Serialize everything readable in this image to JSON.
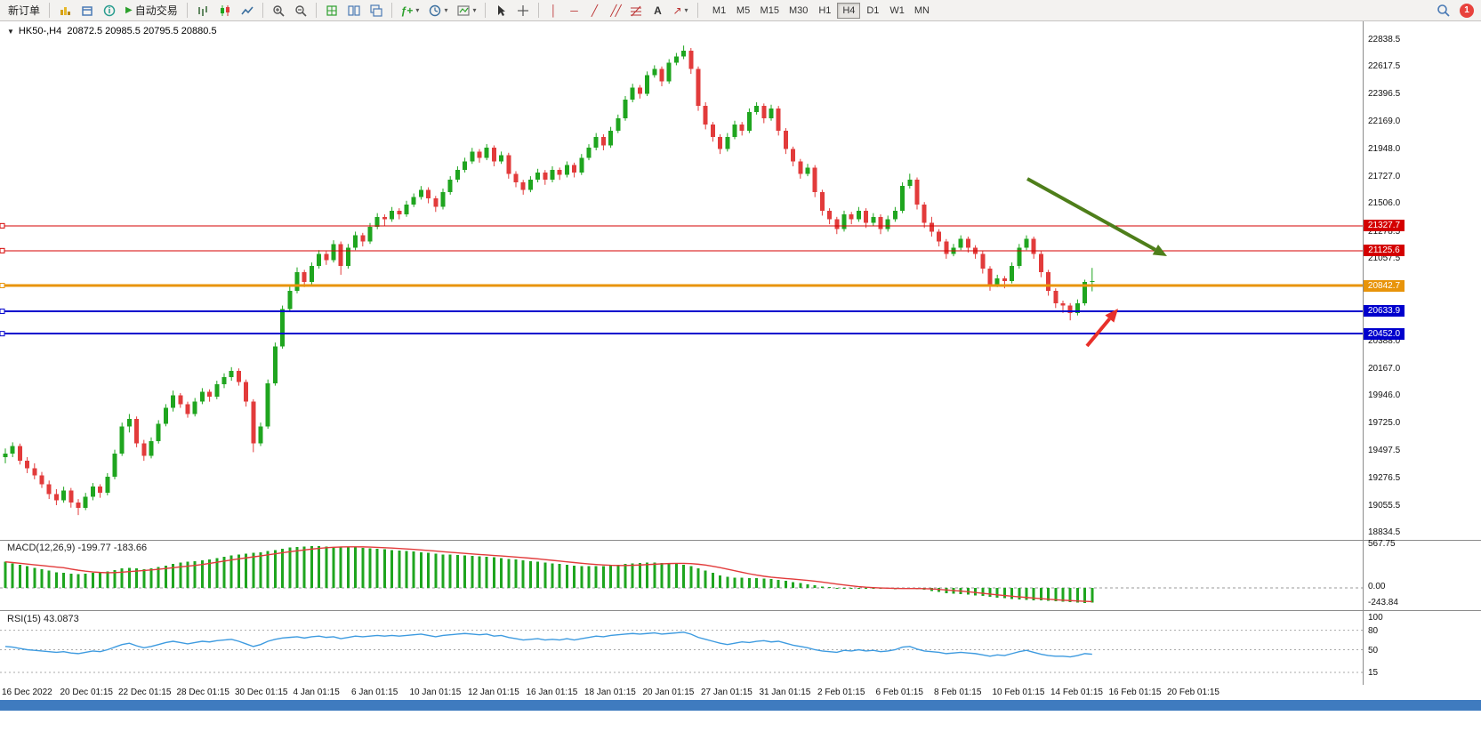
{
  "toolbar": {
    "new_order_label": "新订单",
    "auto_trade_label": "自动交易",
    "timeframes": [
      "M1",
      "M5",
      "M15",
      "M30",
      "H1",
      "H4",
      "D1",
      "W1",
      "MN"
    ],
    "active_timeframe": "H4",
    "notification_count": "1"
  },
  "icons": {
    "expand_triangle": "▼",
    "play": "▶",
    "dropdown_caret": "▾",
    "vline": "│",
    "hline": "─",
    "trendline": "╱",
    "channel": "╱╱",
    "text_tool": "A",
    "arrows_tool": "↗",
    "indicator_fx": "ƒ+"
  },
  "colors": {
    "up": "#1fa51f",
    "down": "#e23b3b",
    "macd_hist": "#1fa51f",
    "macd_signal": "#e23b3b",
    "rsi_line": "#3e9be0",
    "line_red": "#d40000",
    "line_orange": "#e8940a",
    "line_blue": "#0000cd"
  },
  "chart": {
    "title": "HK50-,H4",
    "ohlc_text": "20872.5 20985.5 20795.5 20880.5"
  },
  "chart_data": {
    "type": "candlestick",
    "symbol": "HK50-",
    "timeframe": "H4",
    "last_ohlc": {
      "open": 20872.5,
      "high": 20985.5,
      "low": 20795.5,
      "close": 20880.5
    },
    "price_range_visible": [
      18800,
      22900
    ],
    "price_axis": [
      22838.5,
      22617.5,
      22396.5,
      22169.0,
      21948.0,
      21727.0,
      21506.0,
      21278.5,
      21057.5,
      20388.0,
      20167.0,
      19946.0,
      19725.0,
      19497.5,
      19276.5,
      19055.5,
      18834.5
    ],
    "horizontal_lines": [
      {
        "price": 21327.7,
        "color": "#d40000",
        "width": 1
      },
      {
        "price": 21125.6,
        "color": "#d40000",
        "width": 1
      },
      {
        "price": 20842.7,
        "color": "#e8940a",
        "width": 3
      },
      {
        "price": 20633.9,
        "color": "#0000cd",
        "width": 2
      },
      {
        "price": 20452.0,
        "color": "#0000cd",
        "width": 2
      }
    ],
    "annotations": [
      {
        "name": "downtrend-arrow",
        "color": "#4e7e1a",
        "width": 4,
        "from": [
          1155,
          201
        ],
        "to": [
          1312,
          288
        ]
      },
      {
        "name": "bounce-arrow",
        "color": "#e8302a",
        "width": 4,
        "from": [
          1222,
          389
        ],
        "to": [
          1257,
          347
        ]
      }
    ],
    "candles": [
      [
        19450,
        19520,
        19400,
        19480
      ],
      [
        19480,
        19570,
        19450,
        19540
      ],
      [
        19540,
        19560,
        19390,
        19420
      ],
      [
        19420,
        19450,
        19320,
        19360
      ],
      [
        19360,
        19400,
        19270,
        19300
      ],
      [
        19300,
        19330,
        19200,
        19230
      ],
      [
        19230,
        19260,
        19110,
        19150
      ],
      [
        19150,
        19190,
        19060,
        19100
      ],
      [
        19100,
        19210,
        19080,
        19180
      ],
      [
        19180,
        19200,
        19040,
        19080
      ],
      [
        19080,
        19110,
        18980,
        19040
      ],
      [
        19040,
        19160,
        19020,
        19130
      ],
      [
        19130,
        19240,
        19100,
        19210
      ],
      [
        19210,
        19230,
        19120,
        19160
      ],
      [
        19160,
        19320,
        19140,
        19290
      ],
      [
        19290,
        19510,
        19270,
        19480
      ],
      [
        19480,
        19730,
        19460,
        19700
      ],
      [
        19700,
        19800,
        19650,
        19760
      ],
      [
        19760,
        19780,
        19530,
        19560
      ],
      [
        19560,
        19590,
        19420,
        19460
      ],
      [
        19460,
        19610,
        19440,
        19580
      ],
      [
        19580,
        19750,
        19560,
        19720
      ],
      [
        19720,
        19880,
        19700,
        19850
      ],
      [
        19850,
        19990,
        19820,
        19950
      ],
      [
        19950,
        19970,
        19850,
        19880
      ],
      [
        19880,
        19900,
        19770,
        19800
      ],
      [
        19800,
        19930,
        19780,
        19900
      ],
      [
        19900,
        20010,
        19880,
        19980
      ],
      [
        19980,
        20000,
        19900,
        19940
      ],
      [
        19940,
        20070,
        19920,
        20040
      ],
      [
        20040,
        20130,
        20010,
        20100
      ],
      [
        20100,
        20180,
        20070,
        20150
      ],
      [
        20150,
        20170,
        20030,
        20060
      ],
      [
        20060,
        20080,
        19860,
        19900
      ],
      [
        19900,
        19920,
        19490,
        19560
      ],
      [
        19560,
        19730,
        19540,
        19700
      ],
      [
        19700,
        20080,
        19680,
        20050
      ],
      [
        20050,
        20380,
        20030,
        20350
      ],
      [
        20350,
        20680,
        20330,
        20650
      ],
      [
        20650,
        20840,
        20630,
        20800
      ],
      [
        20800,
        20990,
        20780,
        20950
      ],
      [
        20950,
        20970,
        20830,
        20870
      ],
      [
        20870,
        21030,
        20850,
        21000
      ],
      [
        21000,
        21130,
        20980,
        21100
      ],
      [
        21100,
        21120,
        21010,
        21050
      ],
      [
        21050,
        21210,
        21030,
        21180
      ],
      [
        21180,
        21200,
        20930,
        21000
      ],
      [
        21000,
        21180,
        20980,
        21150
      ],
      [
        21150,
        21280,
        21130,
        21250
      ],
      [
        21250,
        21270,
        21160,
        21200
      ],
      [
        21200,
        21350,
        21180,
        21320
      ],
      [
        21320,
        21430,
        21300,
        21400
      ],
      [
        21400,
        21420,
        21330,
        21380
      ],
      [
        21380,
        21480,
        21360,
        21450
      ],
      [
        21450,
        21470,
        21380,
        21420
      ],
      [
        21420,
        21530,
        21400,
        21500
      ],
      [
        21500,
        21590,
        21480,
        21560
      ],
      [
        21560,
        21650,
        21540,
        21620
      ],
      [
        21620,
        21640,
        21510,
        21550
      ],
      [
        21550,
        21570,
        21440,
        21480
      ],
      [
        21480,
        21630,
        21460,
        21600
      ],
      [
        21600,
        21730,
        21580,
        21700
      ],
      [
        21700,
        21810,
        21680,
        21780
      ],
      [
        21780,
        21880,
        21760,
        21850
      ],
      [
        21850,
        21960,
        21830,
        21930
      ],
      [
        21930,
        21950,
        21840,
        21880
      ],
      [
        21880,
        21990,
        21860,
        21960
      ],
      [
        21960,
        21980,
        21810,
        21850
      ],
      [
        21850,
        21930,
        21830,
        21900
      ],
      [
        21900,
        21920,
        21710,
        21750
      ],
      [
        21750,
        21770,
        21640,
        21680
      ],
      [
        21680,
        21700,
        21580,
        21620
      ],
      [
        21620,
        21730,
        21600,
        21700
      ],
      [
        21700,
        21790,
        21680,
        21760
      ],
      [
        21760,
        21780,
        21660,
        21700
      ],
      [
        21700,
        21810,
        21680,
        21780
      ],
      [
        21780,
        21800,
        21700,
        21740
      ],
      [
        21740,
        21850,
        21720,
        21820
      ],
      [
        21820,
        21840,
        21720,
        21760
      ],
      [
        21760,
        21910,
        21740,
        21880
      ],
      [
        21880,
        21990,
        21860,
        21960
      ],
      [
        21960,
        22080,
        21940,
        22050
      ],
      [
        22050,
        22070,
        21940,
        21980
      ],
      [
        21980,
        22130,
        21960,
        22100
      ],
      [
        22100,
        22230,
        22080,
        22200
      ],
      [
        22200,
        22380,
        22180,
        22350
      ],
      [
        22350,
        22480,
        22330,
        22450
      ],
      [
        22450,
        22470,
        22360,
        22400
      ],
      [
        22400,
        22580,
        22380,
        22550
      ],
      [
        22550,
        22630,
        22530,
        22600
      ],
      [
        22600,
        22620,
        22460,
        22500
      ],
      [
        22500,
        22680,
        22480,
        22650
      ],
      [
        22650,
        22730,
        22630,
        22700
      ],
      [
        22700,
        22790,
        22680,
        22750
      ],
      [
        22750,
        22770,
        22560,
        22600
      ],
      [
        22600,
        22620,
        22260,
        22300
      ],
      [
        22300,
        22330,
        22110,
        22150
      ],
      [
        22150,
        22170,
        22010,
        22050
      ],
      [
        22050,
        22070,
        21910,
        21950
      ],
      [
        21950,
        22080,
        21930,
        22050
      ],
      [
        22050,
        22180,
        22030,
        22150
      ],
      [
        22150,
        22170,
        22060,
        22100
      ],
      [
        22100,
        22280,
        22080,
        22250
      ],
      [
        22250,
        22330,
        22230,
        22300
      ],
      [
        22300,
        22320,
        22160,
        22200
      ],
      [
        22200,
        22310,
        22180,
        22280
      ],
      [
        22280,
        22300,
        22060,
        22100
      ],
      [
        22100,
        22120,
        21910,
        21950
      ],
      [
        21950,
        21970,
        21810,
        21850
      ],
      [
        21850,
        21870,
        21710,
        21750
      ],
      [
        21750,
        21830,
        21730,
        21800
      ],
      [
        21800,
        21820,
        21560,
        21600
      ],
      [
        21600,
        21620,
        21410,
        21450
      ],
      [
        21450,
        21470,
        21340,
        21380
      ],
      [
        21380,
        21400,
        21260,
        21300
      ],
      [
        21300,
        21450,
        21280,
        21420
      ],
      [
        21420,
        21440,
        21340,
        21380
      ],
      [
        21380,
        21480,
        21360,
        21450
      ],
      [
        21450,
        21470,
        21310,
        21350
      ],
      [
        21350,
        21430,
        21330,
        21400
      ],
      [
        21400,
        21420,
        21260,
        21300
      ],
      [
        21300,
        21410,
        21280,
        21380
      ],
      [
        21380,
        21480,
        21360,
        21450
      ],
      [
        21450,
        21680,
        21430,
        21650
      ],
      [
        21650,
        21750,
        21630,
        21700
      ],
      [
        21700,
        21720,
        21460,
        21500
      ],
      [
        21500,
        21520,
        21310,
        21350
      ],
      [
        21350,
        21400,
        21240,
        21280
      ],
      [
        21280,
        21300,
        21160,
        21200
      ],
      [
        21200,
        21220,
        21060,
        21100
      ],
      [
        21100,
        21180,
        21080,
        21150
      ],
      [
        21150,
        21250,
        21130,
        21220
      ],
      [
        21220,
        21240,
        21110,
        21150
      ],
      [
        21150,
        21170,
        21060,
        21100
      ],
      [
        21100,
        21120,
        20940,
        20980
      ],
      [
        20980,
        21000,
        20800,
        20850
      ],
      [
        20850,
        20930,
        20830,
        20900
      ],
      [
        20900,
        20920,
        20820,
        20880
      ],
      [
        20880,
        21030,
        20860,
        21000
      ],
      [
        21000,
        21180,
        20980,
        21150
      ],
      [
        21150,
        21250,
        21130,
        21220
      ],
      [
        21220,
        21240,
        21060,
        21100
      ],
      [
        21100,
        21120,
        20910,
        20950
      ],
      [
        20950,
        20970,
        20760,
        20800
      ],
      [
        20800,
        20820,
        20660,
        20700
      ],
      [
        20700,
        20720,
        20620,
        20680
      ],
      [
        20680,
        20700,
        20560,
        20620
      ],
      [
        20620,
        20730,
        20600,
        20700
      ],
      [
        20700,
        20890,
        20680,
        20870
      ],
      [
        20872.5,
        20985.5,
        20795.5,
        20880.5
      ]
    ],
    "macd": {
      "label": "MACD(12,26,9)",
      "main_text": "-199.77",
      "signal_text": "-183.66",
      "axis": [
        "567.75",
        "0.00",
        "-243.84"
      ],
      "histogram": [
        350,
        330,
        310,
        290,
        270,
        250,
        230,
        210,
        200,
        190,
        185,
        190,
        200,
        210,
        220,
        240,
        260,
        270,
        260,
        250,
        260,
        280,
        300,
        320,
        340,
        350,
        360,
        370,
        380,
        400,
        420,
        435,
        450,
        460,
        470,
        480,
        495,
        510,
        525,
        540,
        550,
        555,
        560,
        560,
        555,
        550,
        548,
        545,
        542,
        538,
        532,
        525,
        518,
        510,
        502,
        495,
        488,
        480,
        470,
        460,
        450,
        445,
        440,
        435,
        430,
        425,
        420,
        410,
        400,
        390,
        380,
        370,
        360,
        350,
        340,
        330,
        320,
        310,
        300,
        295,
        290,
        290,
        295,
        300,
        310,
        320,
        330,
        335,
        340,
        340,
        335,
        330,
        320,
        310,
        290,
        260,
        230,
        200,
        170,
        150,
        140,
        135,
        130,
        130,
        125,
        120,
        110,
        95,
        80,
        65,
        50,
        35,
        20,
        10,
        0,
        -5,
        -10,
        -10,
        -5,
        0,
        -5,
        -10,
        -15,
        -10,
        -5,
        -15,
        -25,
        -40,
        -55,
        -70,
        -80,
        -85,
        -90,
        -100,
        -110,
        -120,
        -130,
        -140,
        -150,
        -155,
        -160,
        -165,
        -170,
        -175,
        -180,
        -185,
        -190,
        -195,
        -200,
        -199.77
      ]
    },
    "rsi": {
      "label": "RSI(15)",
      "value_text": "43.0873",
      "levels": [
        80,
        50,
        15
      ],
      "axis": [
        100,
        80,
        50,
        15
      ],
      "values": [
        55,
        54,
        52,
        50,
        49,
        48,
        47,
        46,
        47,
        45,
        44,
        46,
        48,
        47,
        50,
        54,
        58,
        60,
        56,
        53,
        55,
        58,
        61,
        63,
        61,
        59,
        61,
        63,
        62,
        64,
        65,
        66,
        63,
        59,
        55,
        58,
        63,
        66,
        68,
        69,
        70,
        68,
        70,
        71,
        69,
        70,
        67,
        69,
        71,
        70,
        71,
        72,
        71,
        72,
        71,
        72,
        73,
        74,
        72,
        70,
        72,
        73,
        74,
        75,
        74,
        73,
        74,
        71,
        72,
        69,
        67,
        65,
        66,
        67,
        65,
        66,
        65,
        67,
        65,
        67,
        69,
        71,
        70,
        72,
        73,
        74,
        75,
        74,
        75,
        76,
        74,
        75,
        76,
        77,
        74,
        69,
        66,
        63,
        60,
        58,
        60,
        62,
        61,
        63,
        64,
        62,
        63,
        60,
        57,
        55,
        53,
        50,
        48,
        47,
        46,
        49,
        48,
        50,
        48,
        49,
        47,
        48,
        50,
        54,
        55,
        51,
        48,
        47,
        46,
        44,
        45,
        46,
        45,
        44,
        42,
        40,
        42,
        41,
        44,
        47,
        49,
        46,
        43,
        41,
        40,
        40,
        39,
        41,
        44,
        43.09
      ]
    },
    "time_labels": [
      "16 Dec 2022",
      "20 Dec 01:15",
      "22 Dec 01:15",
      "28 Dec 01:15",
      "30 Dec 01:15",
      "4 Jan 01:15",
      "6 Jan 01:15",
      "10 Jan 01:15",
      "12 Jan 01:15",
      "16 Jan 01:15",
      "18 Jan 01:15",
      "20 Jan 01:15",
      "27 Jan 01:15",
      "31 Jan 01:15",
      "2 Feb 01:15",
      "6 Feb 01:15",
      "8 Feb 01:15",
      "10 Feb 01:15",
      "14 Feb 01:15",
      "16 Feb 01:15",
      "20 Feb 01:15"
    ]
  }
}
